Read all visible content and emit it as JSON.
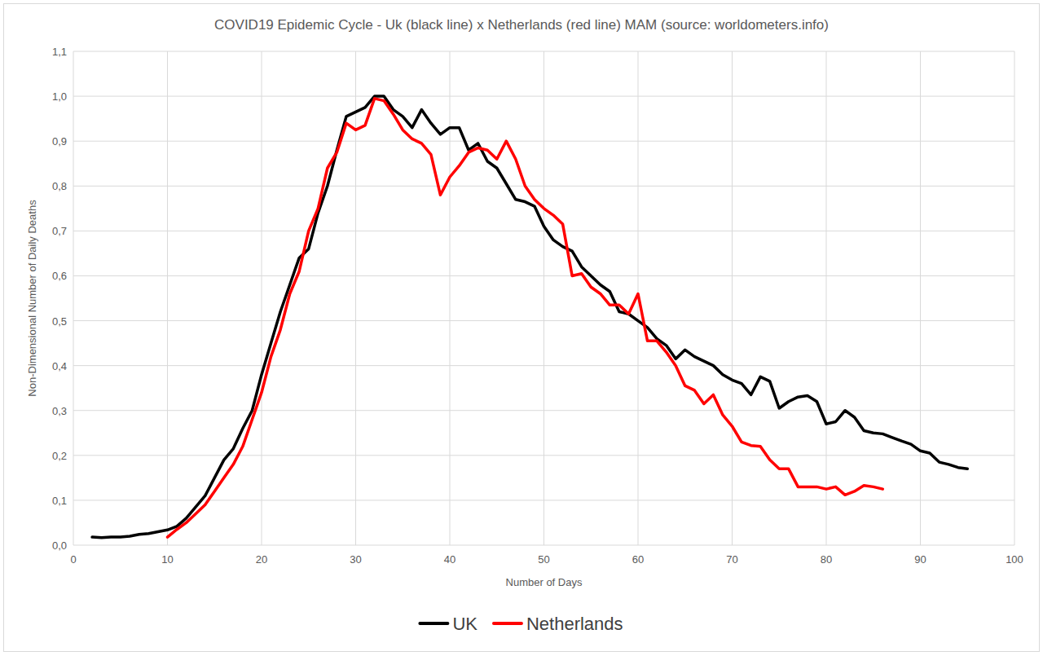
{
  "chart_data": {
    "type": "line",
    "title": "COVID19 Epidemic Cycle - Uk (black line) x Netherlands (red line) MAM (source: worldometers.info)",
    "x_label": "Number of Days",
    "y_label": "Non-Dimensional Number of Daily Deaths",
    "x": [
      2,
      3,
      4,
      5,
      6,
      7,
      8,
      9,
      10,
      11,
      12,
      13,
      14,
      15,
      16,
      17,
      18,
      19,
      20,
      21,
      22,
      23,
      24,
      25,
      26,
      27,
      28,
      29,
      30,
      31,
      32,
      33,
      34,
      35,
      36,
      37,
      38,
      39,
      40,
      41,
      42,
      43,
      44,
      45,
      46,
      47,
      48,
      49,
      50,
      51,
      52,
      53,
      54,
      55,
      56,
      57,
      58,
      59,
      60,
      61,
      62,
      63,
      64,
      65,
      66,
      67,
      68,
      69,
      70,
      71,
      72,
      73,
      74,
      75,
      76,
      77,
      78,
      79,
      80,
      81,
      82,
      83,
      84,
      85,
      86,
      87,
      88,
      89,
      90,
      91,
      92,
      93,
      94,
      95
    ],
    "series": [
      {
        "name": "UK",
        "color": "#000000",
        "values": [
          0.018,
          0.017,
          0.018,
          0.018,
          0.02,
          0.024,
          0.026,
          0.03,
          0.034,
          0.042,
          0.06,
          0.085,
          0.11,
          0.15,
          0.19,
          0.215,
          0.26,
          0.3,
          0.38,
          0.45,
          0.52,
          0.58,
          0.64,
          0.66,
          0.74,
          0.8,
          0.88,
          0.955,
          0.965,
          0.975,
          1.0,
          1.0,
          0.97,
          0.955,
          0.93,
          0.97,
          0.94,
          0.915,
          0.93,
          0.93,
          0.88,
          0.895,
          0.855,
          0.84,
          0.805,
          0.77,
          0.765,
          0.755,
          0.71,
          0.68,
          0.665,
          0.655,
          0.62,
          0.6,
          0.58,
          0.565,
          0.52,
          0.515,
          0.5,
          0.485,
          0.46,
          0.445,
          0.415,
          0.435,
          0.42,
          0.41,
          0.4,
          0.38,
          0.368,
          0.36,
          0.335,
          0.375,
          0.365,
          0.305,
          0.32,
          0.33,
          0.333,
          0.32,
          0.27,
          0.275,
          0.3,
          0.285,
          0.255,
          0.25,
          0.248,
          0.24,
          0.232,
          0.225,
          0.21,
          0.205,
          0.185,
          0.18,
          0.173,
          0.17
        ]
      },
      {
        "name": "Netherlands",
        "color": "#ff0000",
        "values": [
          null,
          null,
          null,
          null,
          null,
          null,
          null,
          null,
          0.018,
          0.035,
          0.05,
          0.07,
          0.09,
          0.12,
          0.15,
          0.18,
          0.22,
          0.28,
          0.34,
          0.42,
          0.48,
          0.56,
          0.61,
          0.7,
          0.75,
          0.84,
          0.875,
          0.94,
          0.925,
          0.935,
          0.995,
          0.99,
          0.96,
          0.925,
          0.905,
          0.895,
          0.87,
          0.78,
          0.82,
          0.845,
          0.875,
          0.885,
          0.88,
          0.86,
          0.9,
          0.86,
          0.8,
          0.77,
          0.75,
          0.735,
          0.715,
          0.6,
          0.605,
          0.575,
          0.56,
          0.535,
          0.535,
          0.515,
          0.56,
          0.455,
          0.455,
          0.43,
          0.4,
          0.355,
          0.345,
          0.315,
          0.335,
          0.29,
          0.265,
          0.23,
          0.222,
          0.22,
          0.19,
          0.17,
          0.17,
          0.13,
          0.13,
          0.13,
          0.125,
          0.13,
          0.112,
          0.12,
          0.133,
          0.13,
          0.125,
          null,
          null,
          null,
          null,
          null,
          null,
          null,
          null,
          null
        ]
      }
    ],
    "xlim": [
      0,
      100
    ],
    "xticks": [
      0,
      10,
      20,
      30,
      40,
      50,
      60,
      70,
      80,
      90,
      100
    ],
    "ylim": [
      0,
      1.1
    ],
    "yticks": [
      {
        "value": 0,
        "label": "0,0"
      },
      {
        "value": 0.1,
        "label": "0,1"
      },
      {
        "value": 0.2,
        "label": "0,2"
      },
      {
        "value": 0.3,
        "label": "0,3"
      },
      {
        "value": 0.4,
        "label": "0,4"
      },
      {
        "value": 0.5,
        "label": "0,5"
      },
      {
        "value": 0.6,
        "label": "0,6"
      },
      {
        "value": 0.7,
        "label": "0,7"
      },
      {
        "value": 0.8,
        "label": "0,8"
      },
      {
        "value": 0.9,
        "label": "0,9"
      },
      {
        "value": 1.0,
        "label": "1,0"
      },
      {
        "value": 1.1,
        "label": "1,1"
      }
    ],
    "grid": true,
    "legend": "bottom"
  }
}
